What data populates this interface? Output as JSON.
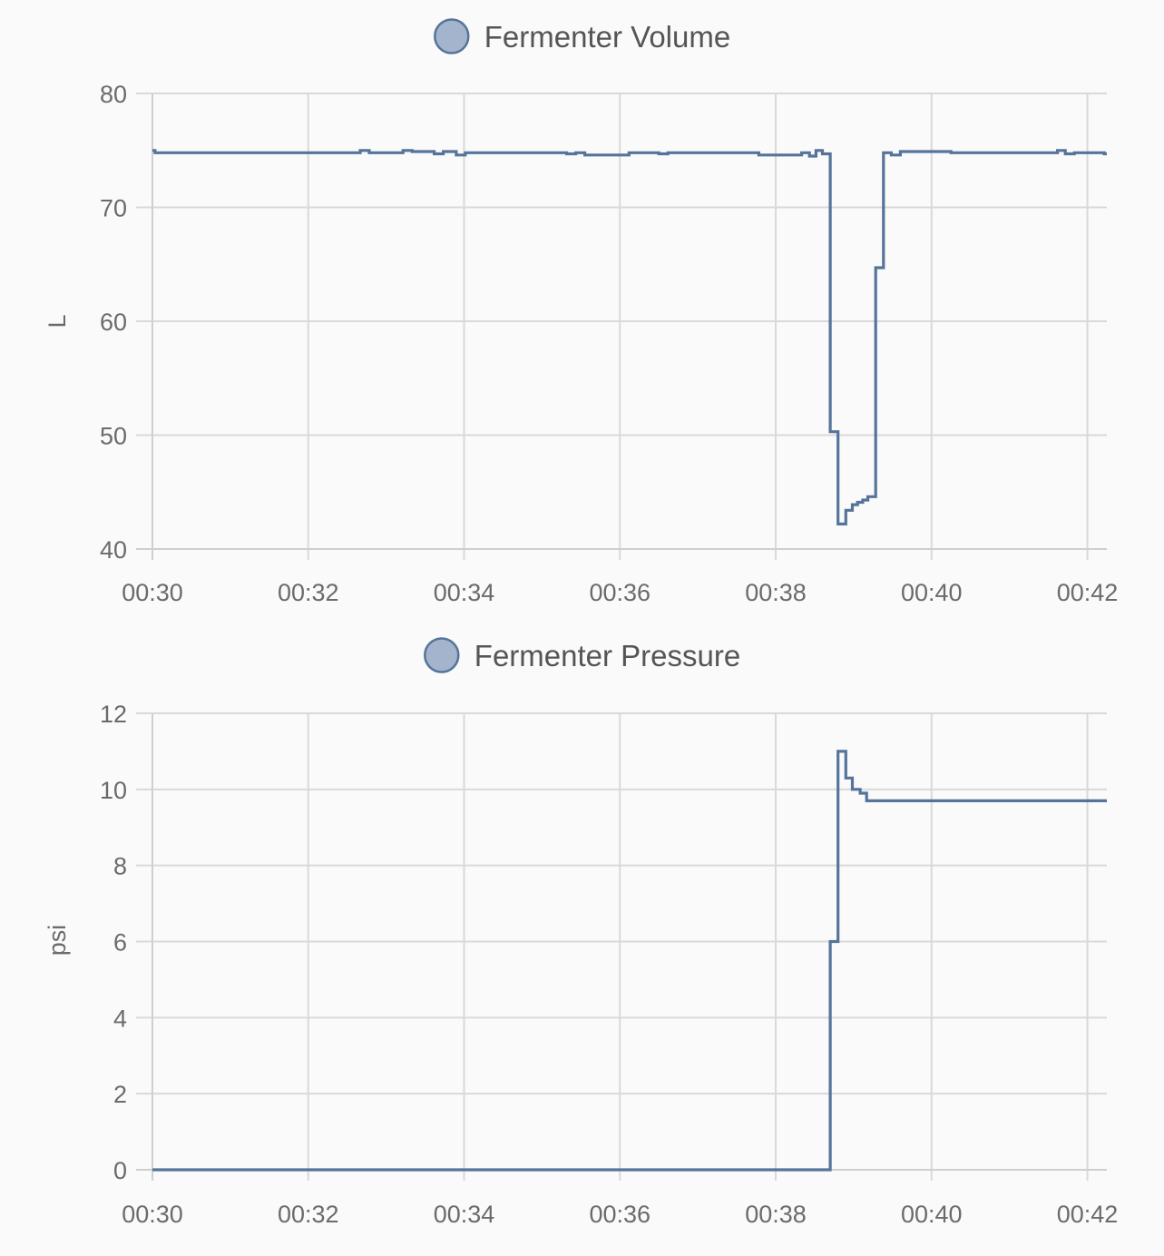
{
  "series_color": "#56749b",
  "marker_fill": "#a3b4cc",
  "chart_data": [
    {
      "type": "line",
      "step": true,
      "legend": "Fermenter Volume",
      "ylabel": "L",
      "ylim": [
        40,
        80
      ],
      "yticks": [
        "80",
        "70",
        "60",
        "50",
        "40"
      ],
      "ytick_values": [
        80,
        70,
        60,
        50,
        40
      ],
      "xticks": [
        "00:30",
        "00:32",
        "00:34",
        "00:36",
        "00:38",
        "00:40",
        "00:42"
      ],
      "xlim_minutes": [
        30,
        42.25
      ],
      "series": [
        {
          "name": "Fermenter Volume",
          "points": [
            [
              "00:30:00",
              75.0
            ],
            [
              "00:30:02",
              74.8
            ],
            [
              "00:32:40",
              75.0
            ],
            [
              "00:32:47",
              74.8
            ],
            [
              "00:33:13",
              75.0
            ],
            [
              "00:33:20",
              74.9
            ],
            [
              "00:33:37",
              74.7
            ],
            [
              "00:33:44",
              74.9
            ],
            [
              "00:33:54",
              74.6
            ],
            [
              "00:34:01",
              74.8
            ],
            [
              "00:35:19",
              74.7
            ],
            [
              "00:35:26",
              74.8
            ],
            [
              "00:35:33",
              74.6
            ],
            [
              "00:36:07",
              74.8
            ],
            [
              "00:36:30",
              74.7
            ],
            [
              "00:36:37",
              74.8
            ],
            [
              "00:37:47",
              74.6
            ],
            [
              "00:38:20",
              74.8
            ],
            [
              "00:38:26",
              74.5
            ],
            [
              "00:38:31",
              75.0
            ],
            [
              "00:38:36",
              74.7
            ],
            [
              "00:38:42",
              50.3
            ],
            [
              "00:38:48",
              42.2
            ],
            [
              "00:38:54",
              43.4
            ],
            [
              "00:38:59",
              43.9
            ],
            [
              "00:39:03",
              44.1
            ],
            [
              "00:39:07",
              44.3
            ],
            [
              "00:39:11",
              44.6
            ],
            [
              "00:39:17",
              64.7
            ],
            [
              "00:39:23",
              74.8
            ],
            [
              "00:39:29",
              74.6
            ],
            [
              "00:39:36",
              74.9
            ],
            [
              "00:40:15",
              74.8
            ],
            [
              "00:41:37",
              75.0
            ],
            [
              "00:41:43",
              74.7
            ],
            [
              "00:41:50",
              74.8
            ],
            [
              "00:42:13",
              74.7
            ],
            [
              "00:42:15",
              74.7
            ]
          ]
        }
      ]
    },
    {
      "type": "line",
      "step": true,
      "legend": "Fermenter Pressure",
      "ylabel": "psi",
      "ylim": [
        0,
        12
      ],
      "yticks": [
        "12",
        "10",
        "8",
        "6",
        "4",
        "2",
        "0"
      ],
      "ytick_values": [
        12,
        10,
        8,
        6,
        4,
        2,
        0
      ],
      "xticks": [
        "00:30",
        "00:32",
        "00:34",
        "00:36",
        "00:38",
        "00:40",
        "00:42"
      ],
      "xlim_minutes": [
        30,
        42.25
      ],
      "series": [
        {
          "name": "Fermenter Pressure",
          "points": [
            [
              "00:30:00",
              0.0
            ],
            [
              "00:38:42",
              6.0
            ],
            [
              "00:38:48",
              11.0
            ],
            [
              "00:38:54",
              10.3
            ],
            [
              "00:38:59",
              10.0
            ],
            [
              "00:39:05",
              9.9
            ],
            [
              "00:39:10",
              9.7
            ],
            [
              "00:42:15",
              9.7
            ]
          ]
        }
      ]
    }
  ]
}
